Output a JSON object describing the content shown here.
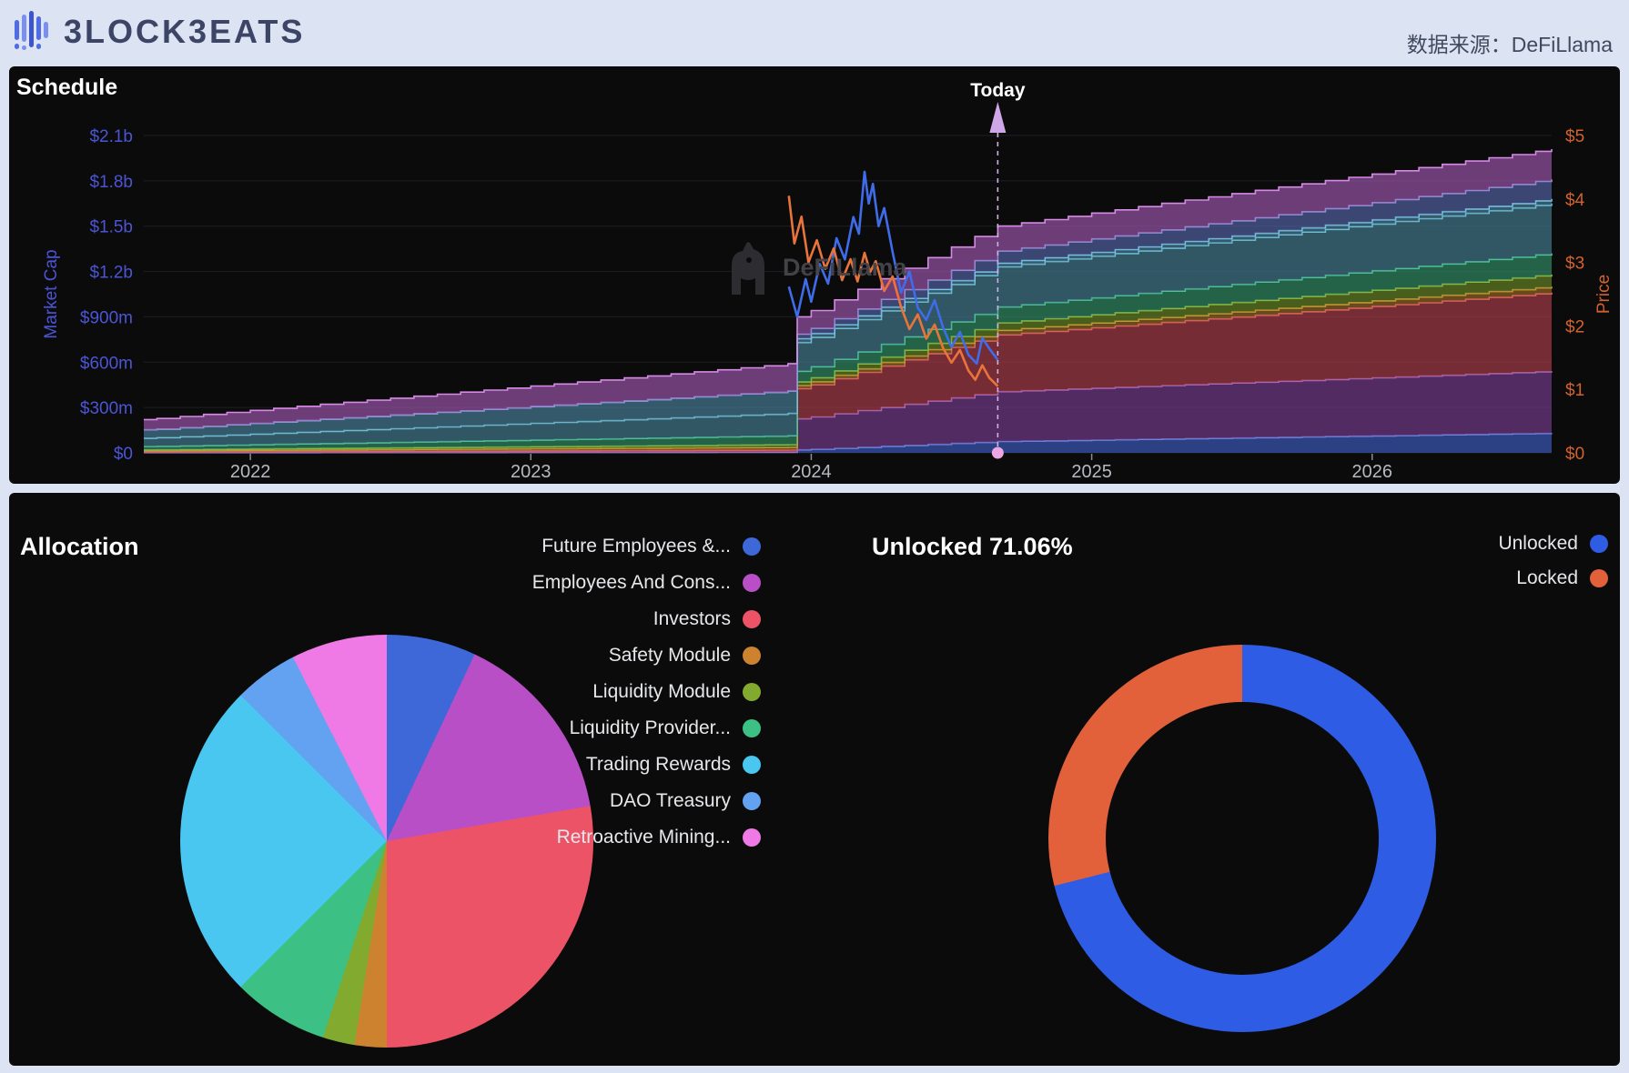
{
  "header": {
    "brand": "BLOCKBEATS",
    "brand_display": "3LOCK3EATS",
    "source_label": "数据来源：DeFiLlama"
  },
  "chart_data": [
    {
      "id": "schedule",
      "type": "area",
      "title": "Schedule",
      "today_label": "Today",
      "watermark": "DeFiLlama",
      "x_ticks": [
        "2022",
        "2023",
        "2024",
        "2025",
        "2026"
      ],
      "x_range": [
        2021.62,
        2026.64
      ],
      "today_x": 2024.665,
      "cliff_x": 2023.92,
      "left_axis": {
        "label": "Market Cap",
        "color": "#4b55d4",
        "tick_labels": [
          "$0",
          "$300m",
          "$600m",
          "$900m",
          "$1.2b",
          "$1.5b",
          "$1.8b",
          "$2.1b"
        ],
        "tick_values_m": [
          0,
          300,
          600,
          900,
          1200,
          1500,
          1800,
          2100
        ],
        "max_m": 2100
      },
      "right_axis": {
        "label": "Price",
        "color": "#d2622e",
        "tick_labels": [
          "$0",
          "$1",
          "$2",
          "$3",
          "$4",
          "$5"
        ],
        "tick_values": [
          0,
          1,
          2,
          3,
          4,
          5
        ],
        "max": 5
      },
      "stack_anchors_x": [
        2021.62,
        2023.92,
        2023.95,
        2024.665,
        2026.64
      ],
      "stack_layers": [
        {
          "name": "blue",
          "color": "#3f63cf",
          "edge": "#6f8fe8",
          "values_m": [
            1,
            3,
            20,
            75,
            130
          ]
        },
        {
          "name": "purple",
          "color": "#7c3f98",
          "edge": "#a86cc4",
          "values_m": [
            1,
            3,
            205,
            330,
            410
          ]
        },
        {
          "name": "red",
          "color": "#b8404e",
          "edge": "#e0606e",
          "values_m": [
            4,
            12,
            200,
            375,
            520
          ]
        },
        {
          "name": "orange",
          "color": "#a86f26",
          "edge": "#d29a3c",
          "values_m": [
            7,
            18,
            20,
            30,
            40
          ]
        },
        {
          "name": "olive",
          "color": "#6f8f26",
          "edge": "#9abe3a",
          "values_m": [
            7,
            18,
            25,
            50,
            80
          ]
        },
        {
          "name": "green",
          "color": "#359970",
          "edge": "#4ecb96",
          "values_m": [
            22,
            59,
            70,
            105,
            140
          ]
        },
        {
          "name": "teal",
          "color": "#49849b",
          "edge": "#77c8dd",
          "values_m": [
            55,
            148,
            190,
            265,
            330
          ]
        },
        {
          "name": "cyan-edge",
          "color": "#4d89a4",
          "edge": "#7fd8ef",
          "values_m": [
            55,
            148,
            25,
            25,
            30
          ]
        },
        {
          "name": "slate-blue",
          "color": "#5b6ab2",
          "edge": "#8b98d8",
          "values_m": [
            0,
            0,
            30,
            80,
            130
          ]
        },
        {
          "name": "violet-top",
          "color": "#a95cbb",
          "edge": "#d58ae4",
          "values_m": [
            68,
            181,
            115,
            165,
            200
          ]
        }
      ],
      "lines": [
        {
          "name": "Market Cap",
          "axis": "left",
          "color": "#3f6ce8",
          "points": [
            [
              2023.92,
              1100
            ],
            [
              2023.95,
              900
            ],
            [
              2023.98,
              1150
            ],
            [
              2024.0,
              1000
            ],
            [
              2024.03,
              1250
            ],
            [
              2024.06,
              1120
            ],
            [
              2024.09,
              1420
            ],
            [
              2024.12,
              1280
            ],
            [
              2024.15,
              1560
            ],
            [
              2024.17,
              1450
            ],
            [
              2024.19,
              1860
            ],
            [
              2024.205,
              1650
            ],
            [
              2024.22,
              1780
            ],
            [
              2024.24,
              1500
            ],
            [
              2024.26,
              1620
            ],
            [
              2024.29,
              1330
            ],
            [
              2024.32,
              1060
            ],
            [
              2024.35,
              1200
            ],
            [
              2024.38,
              960
            ],
            [
              2024.41,
              880
            ],
            [
              2024.44,
              1010
            ],
            [
              2024.47,
              830
            ],
            [
              2024.5,
              700
            ],
            [
              2024.53,
              800
            ],
            [
              2024.56,
              650
            ],
            [
              2024.59,
              590
            ],
            [
              2024.61,
              760
            ],
            [
              2024.635,
              690
            ],
            [
              2024.665,
              615
            ]
          ]
        },
        {
          "name": "Price",
          "axis": "right",
          "color": "#e8743c",
          "points": [
            [
              2023.92,
              4.05
            ],
            [
              2023.94,
              3.3
            ],
            [
              2023.965,
              3.72
            ],
            [
              2023.99,
              3.0
            ],
            [
              2024.02,
              3.35
            ],
            [
              2024.05,
              2.9
            ],
            [
              2024.08,
              3.22
            ],
            [
              2024.11,
              2.72
            ],
            [
              2024.14,
              3.05
            ],
            [
              2024.165,
              2.7
            ],
            [
              2024.19,
              3.15
            ],
            [
              2024.21,
              2.85
            ],
            [
              2024.23,
              3.02
            ],
            [
              2024.26,
              2.55
            ],
            [
              2024.29,
              2.78
            ],
            [
              2024.32,
              2.3
            ],
            [
              2024.35,
              1.95
            ],
            [
              2024.38,
              2.18
            ],
            [
              2024.41,
              1.8
            ],
            [
              2024.44,
              2.02
            ],
            [
              2024.47,
              1.65
            ],
            [
              2024.5,
              1.42
            ],
            [
              2024.53,
              1.62
            ],
            [
              2024.56,
              1.3
            ],
            [
              2024.585,
              1.15
            ],
            [
              2024.61,
              1.38
            ],
            [
              2024.635,
              1.18
            ],
            [
              2024.665,
              1.05
            ]
          ]
        }
      ]
    },
    {
      "id": "allocation",
      "type": "pie",
      "title": "Allocation",
      "slices": [
        {
          "label": "Future Employees &...",
          "value": 7.0,
          "color": "#3e68d8"
        },
        {
          "label": "Employees And Cons...",
          "value": 15.27,
          "color": "#b84fc6"
        },
        {
          "label": "Investors",
          "value": 27.73,
          "color": "#ec5367"
        },
        {
          "label": "Safety Module",
          "value": 2.5,
          "color": "#cd8230"
        },
        {
          "label": "Liquidity Module",
          "value": 2.5,
          "color": "#82aa2f"
        },
        {
          "label": "Liquidity Provider...",
          "value": 7.5,
          "color": "#3cc084"
        },
        {
          "label": "Trading Rewards",
          "value": 25.0,
          "color": "#4ac7f0"
        },
        {
          "label": "DAO Treasury",
          "value": 5.0,
          "color": "#63a2f0"
        },
        {
          "label": "Retroactive Mining...",
          "value": 7.5,
          "color": "#ef7ae6"
        }
      ]
    },
    {
      "id": "unlocked",
      "type": "donut",
      "title": "Unlocked 71.06%",
      "unlocked_pct": 71.06,
      "slices": [
        {
          "label": "Unlocked",
          "value": 71.06,
          "color": "#2e5ce4"
        },
        {
          "label": "Locked",
          "value": 28.94,
          "color": "#e2613a"
        }
      ]
    }
  ]
}
